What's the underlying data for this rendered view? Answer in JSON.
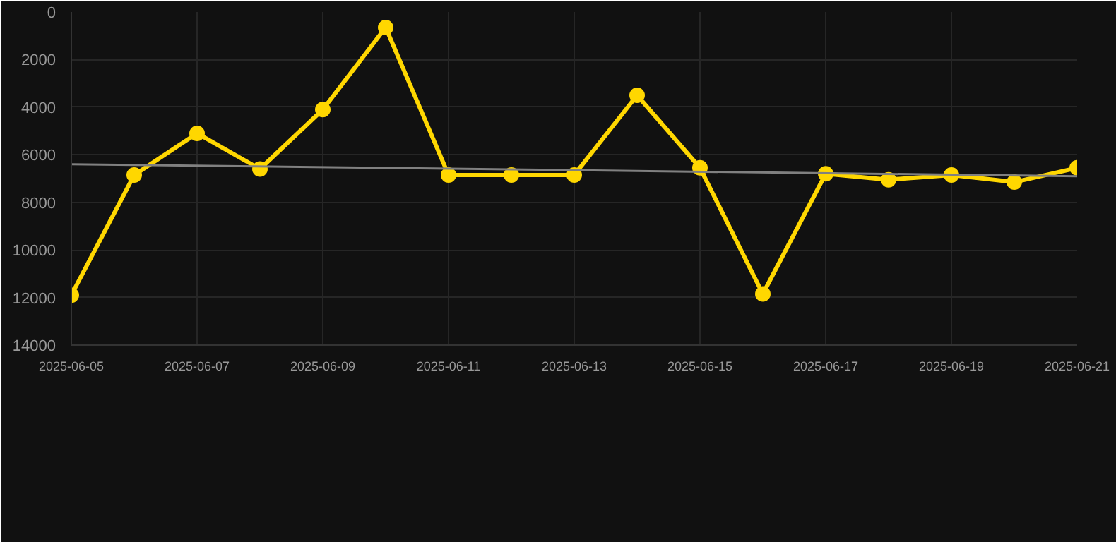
{
  "chart_data": {
    "type": "line",
    "x": [
      "2025-06-05",
      "2025-06-06",
      "2025-06-07",
      "2025-06-08",
      "2025-06-09",
      "2025-06-10",
      "2025-06-11",
      "2025-06-12",
      "2025-06-13",
      "2025-06-14",
      "2025-06-15",
      "2025-06-16",
      "2025-06-17",
      "2025-06-18",
      "2025-06-19",
      "2025-06-20",
      "2025-06-21"
    ],
    "series": [
      {
        "color": "#ffd700",
        "values": [
          11900,
          6850,
          5100,
          6600,
          4100,
          650,
          6850,
          6850,
          6850,
          3500,
          6550,
          11850,
          6800,
          7050,
          6850,
          7150,
          6550
        ],
        "marker": "circle"
      },
      {
        "type": "line",
        "color": "#808080",
        "x": [
          "2025-06-05",
          "2025-06-21"
        ],
        "values": [
          6400,
          6900
        ],
        "marker": "none"
      }
    ],
    "ylim": [
      14000,
      0
    ],
    "yticks": [
      0,
      2000,
      4000,
      6000,
      8000,
      10000,
      12000,
      14000
    ],
    "xlim": [
      "2025-06-05",
      "2025-06-21"
    ],
    "xticks": [
      "2025-06-05",
      "2025-06-07",
      "2025-06-09",
      "2025-06-11",
      "2025-06-13",
      "2025-06-15",
      "2025-06-17",
      "2025-06-19",
      "2025-06-21"
    ],
    "grid": true
  }
}
